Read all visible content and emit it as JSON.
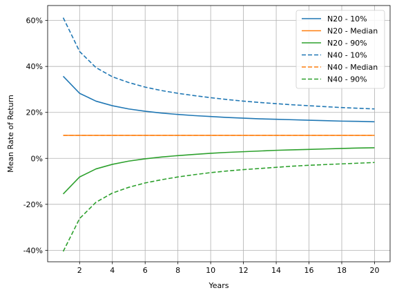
{
  "chart_data": {
    "type": "line",
    "title": "",
    "xlabel": "Years",
    "ylabel": "Mean Rate of Return",
    "xlim": [
      0.05,
      20.95
    ],
    "ylim": [
      -0.45,
      0.665
    ],
    "x_ticks": [
      2,
      4,
      6,
      8,
      10,
      12,
      14,
      16,
      18,
      20
    ],
    "y_ticks": [
      -0.4,
      -0.2,
      0.0,
      0.2,
      0.4,
      0.6
    ],
    "y_tick_format": "percent",
    "grid": true,
    "legend_position": "top-right",
    "x": [
      1,
      2,
      3,
      4,
      5,
      6,
      7,
      8,
      9,
      10,
      11,
      12,
      13,
      14,
      15,
      16,
      17,
      18,
      19,
      20
    ],
    "series": [
      {
        "name": "N20 - 10%",
        "color": "#1f77b4",
        "style": "solid",
        "values": [
          0.357,
          0.283,
          0.249,
          0.229,
          0.215,
          0.205,
          0.197,
          0.191,
          0.186,
          0.182,
          0.178,
          0.175,
          0.172,
          0.17,
          0.168,
          0.166,
          0.164,
          0.162,
          0.161,
          0.159
        ]
      },
      {
        "name": "N20 - Median",
        "color": "#ff7f0e",
        "style": "solid",
        "values": [
          0.1,
          0.1,
          0.1,
          0.1,
          0.1,
          0.1,
          0.1,
          0.1,
          0.1,
          0.1,
          0.1,
          0.1,
          0.1,
          0.1,
          0.1,
          0.1,
          0.1,
          0.1,
          0.1,
          0.1
        ]
      },
      {
        "name": "N20 - 90%",
        "color": "#2ca02c",
        "style": "solid",
        "values": [
          -0.155,
          -0.081,
          -0.046,
          -0.026,
          -0.012,
          -0.002,
          0.006,
          0.012,
          0.017,
          0.022,
          0.026,
          0.029,
          0.032,
          0.035,
          0.037,
          0.039,
          0.041,
          0.043,
          0.045,
          0.046
        ]
      },
      {
        "name": "N40 - 10%",
        "color": "#1f77b4",
        "style": "dashed",
        "values": [
          0.612,
          0.465,
          0.395,
          0.355,
          0.33,
          0.31,
          0.295,
          0.283,
          0.273,
          0.264,
          0.256,
          0.249,
          0.243,
          0.238,
          0.233,
          0.229,
          0.225,
          0.221,
          0.218,
          0.215
        ]
      },
      {
        "name": "N40 - Median",
        "color": "#ff7f0e",
        "style": "dashed",
        "values": [
          0.1,
          0.1,
          0.1,
          0.1,
          0.1,
          0.1,
          0.1,
          0.1,
          0.1,
          0.1,
          0.1,
          0.1,
          0.1,
          0.1,
          0.1,
          0.1,
          0.1,
          0.1,
          0.1,
          0.1
        ]
      },
      {
        "name": "N40 - 90%",
        "color": "#2ca02c",
        "style": "dashed",
        "values": [
          -0.405,
          -0.262,
          -0.191,
          -0.151,
          -0.126,
          -0.107,
          -0.093,
          -0.081,
          -0.071,
          -0.062,
          -0.055,
          -0.049,
          -0.044,
          -0.039,
          -0.034,
          -0.03,
          -0.027,
          -0.024,
          -0.021,
          -0.018
        ]
      }
    ]
  }
}
